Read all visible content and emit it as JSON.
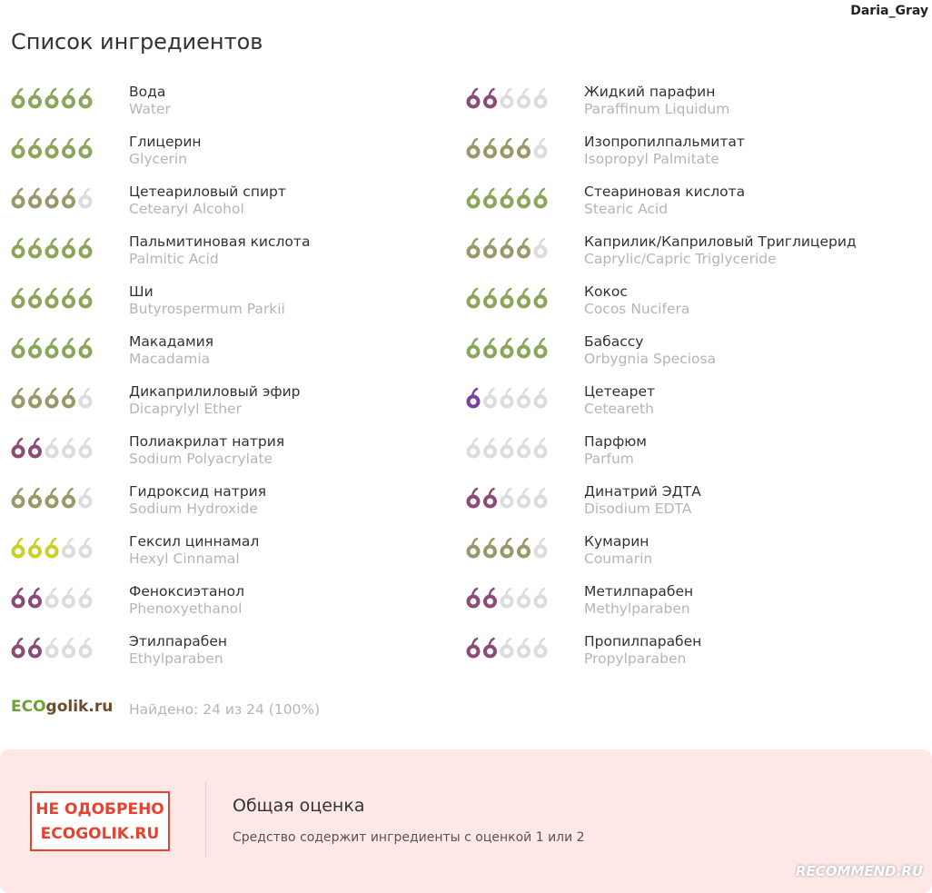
{
  "user": "Daria_Gray",
  "title": "Список ингредиентов",
  "max_rating": 5,
  "rating_colors": {
    "0": "#dcdcdc",
    "1": "#7b3fa2",
    "2": "#8c4a78",
    "3": "#c9d126",
    "4": "#9a9868",
    "5": "#8ba65a"
  },
  "empty_color": "#dcdcdc",
  "columns": [
    [
      {
        "name": "Вода",
        "latin": "Water",
        "rating": 5
      },
      {
        "name": "Глицерин",
        "latin": "Glycerin",
        "rating": 5
      },
      {
        "name": "Цетеариловый спирт",
        "latin": "Cetearyl Alcohol",
        "rating": 4
      },
      {
        "name": "Пальмитиновая кислота",
        "latin": "Palmitic Acid",
        "rating": 5
      },
      {
        "name": "Ши",
        "latin": "Butyrospermum Parkii",
        "rating": 5
      },
      {
        "name": "Макадамия",
        "latin": "Macadamia",
        "rating": 5
      },
      {
        "name": "Дикаприлиловый эфир",
        "latin": "Dicaprylyl Ether",
        "rating": 4
      },
      {
        "name": "Полиакрилат натрия",
        "latin": "Sodium Polyacrylate",
        "rating": 2
      },
      {
        "name": "Гидроксид натрия",
        "latin": "Sodium Hydroxide",
        "rating": 4
      },
      {
        "name": "Гексил циннамал",
        "latin": "Hexyl Cinnamal",
        "rating": 3
      },
      {
        "name": "Феноксиэтанол",
        "latin": "Phenoxyethanol",
        "rating": 2
      },
      {
        "name": "Этилпарабен",
        "latin": "Ethylparaben",
        "rating": 2
      }
    ],
    [
      {
        "name": "Жидкий парафин",
        "latin": "Paraffinum Liquidum",
        "rating": 2
      },
      {
        "name": "Изопропилпальмитат",
        "latin": "Isopropyl Palmitate",
        "rating": 4
      },
      {
        "name": "Стеариновая кислота",
        "latin": "Stearic Acid",
        "rating": 5
      },
      {
        "name": "Каприлик/Каприловый Триглицерид",
        "latin": "Caprylic/Capric Triglyceride",
        "rating": 4
      },
      {
        "name": "Кокос",
        "latin": "Cocos Nucifera",
        "rating": 5
      },
      {
        "name": "Бабассу",
        "latin": "Orbygnia Speciosa",
        "rating": 5
      },
      {
        "name": "Цетеарет",
        "latin": "Ceteareth",
        "rating": 1
      },
      {
        "name": "Парфюм",
        "latin": "Parfum",
        "rating": 0
      },
      {
        "name": "Динатрий ЭДТА",
        "latin": "Disodium EDTA",
        "rating": 2
      },
      {
        "name": "Кумарин",
        "latin": "Coumarin",
        "rating": 4
      },
      {
        "name": "Метилпарабен",
        "latin": "Methylparaben",
        "rating": 2
      },
      {
        "name": "Пропилпарабен",
        "latin": "Propylparaben",
        "rating": 2
      }
    ]
  ],
  "logo": {
    "eco": "ECO",
    "rest": "golik.ru"
  },
  "found": "Найдено: 24 из 24 (100%)",
  "verdict": {
    "badge_line1": "НЕ ОДОБРЕНО",
    "badge_line2": "ECOGOLIK.RU",
    "heading": "Общая оценка",
    "text": "Средство содержит ингредиенты с оценкой 1 или 2"
  },
  "watermark": "RECOMMEND.RU"
}
